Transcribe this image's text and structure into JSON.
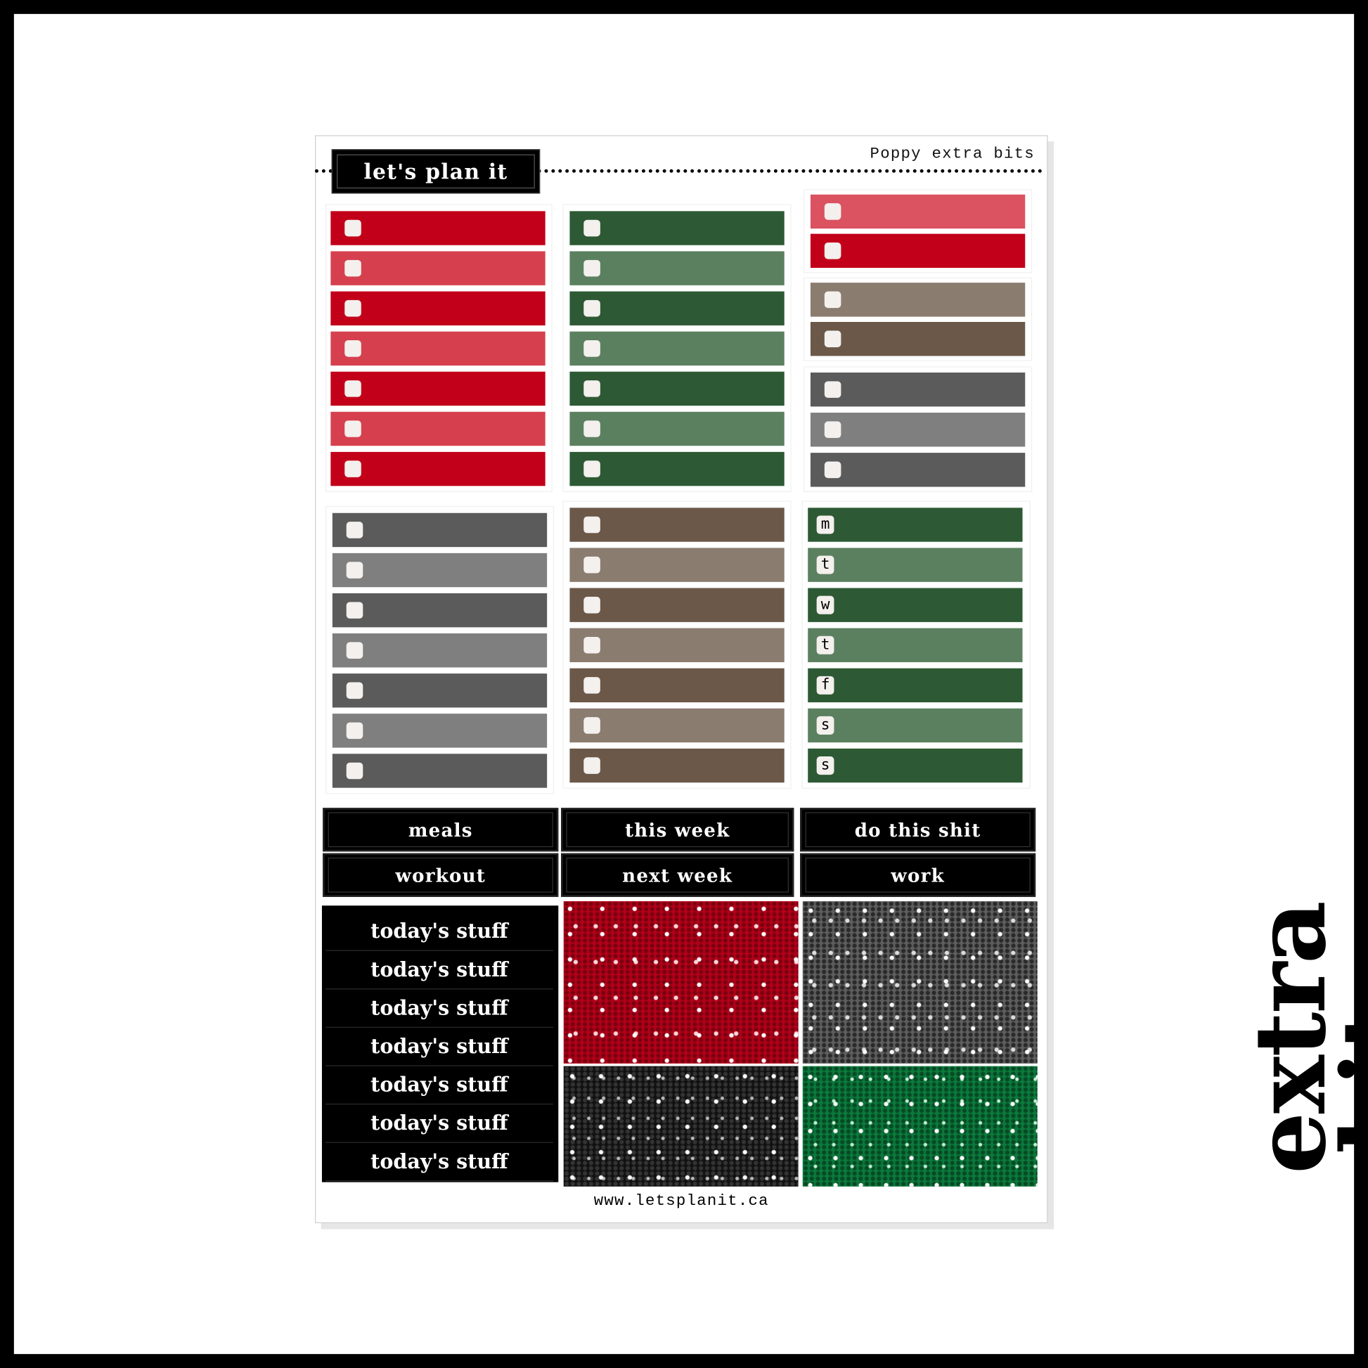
{
  "header": {
    "title": "let's plan it",
    "subtitle": "Poppy extra bits"
  },
  "colors": {
    "red": "#c20019",
    "red_light": "#d6404e",
    "pink": "#db5260",
    "green": "#2d5a34",
    "green_light": "#5b8060",
    "brown": "#6b5849",
    "brown_light": "#8b7c70",
    "gray": "#5b5b5b",
    "gray_light": "#7f7f7f"
  },
  "checklists": [
    {
      "bars": [
        "#c20019",
        "#d6404e",
        "#c20019",
        "#d6404e",
        "#c20019",
        "#d6404e",
        "#c20019"
      ]
    },
    {
      "bars": [
        "#2d5a34",
        "#5b8060",
        "#2d5a34",
        "#5b8060",
        "#2d5a34",
        "#5b8060",
        "#2d5a34"
      ]
    },
    {
      "bars": [
        "#db5260",
        "#c20019"
      ]
    },
    {
      "bars": [
        "#8b7c70",
        "#6b5849"
      ]
    },
    {
      "bars": [
        "#5b5b5b",
        "#7f7f7f",
        "#5b5b5b"
      ]
    },
    {
      "bars": [
        "#5b5b5b",
        "#7f7f7f",
        "#5b5b5b",
        "#7f7f7f",
        "#5b5b5b",
        "#7f7f7f",
        "#5b5b5b"
      ]
    },
    {
      "bars": [
        "#6b5849",
        "#8b7c70",
        "#6b5849",
        "#8b7c70",
        "#6b5849",
        "#8b7c70",
        "#6b5849"
      ]
    }
  ],
  "weekdays": {
    "letters": [
      "m",
      "t",
      "w",
      "t",
      "f",
      "s",
      "s"
    ],
    "bars": [
      "#2d5a34",
      "#5b8060",
      "#2d5a34",
      "#5b8060",
      "#2d5a34",
      "#5b8060",
      "#2d5a34"
    ]
  },
  "labels": [
    "meals",
    "workout",
    "this week",
    "next week",
    "do this shit",
    "work"
  ],
  "today": [
    "today's stuff",
    "today's stuff",
    "today's stuff",
    "today's stuff",
    "today's stuff",
    "today's stuff",
    "today's stuff"
  ],
  "glitter": [
    "red",
    "gray",
    "black",
    "green"
  ],
  "footer": "www.letsplanit.ca",
  "side_title": "extra bits."
}
